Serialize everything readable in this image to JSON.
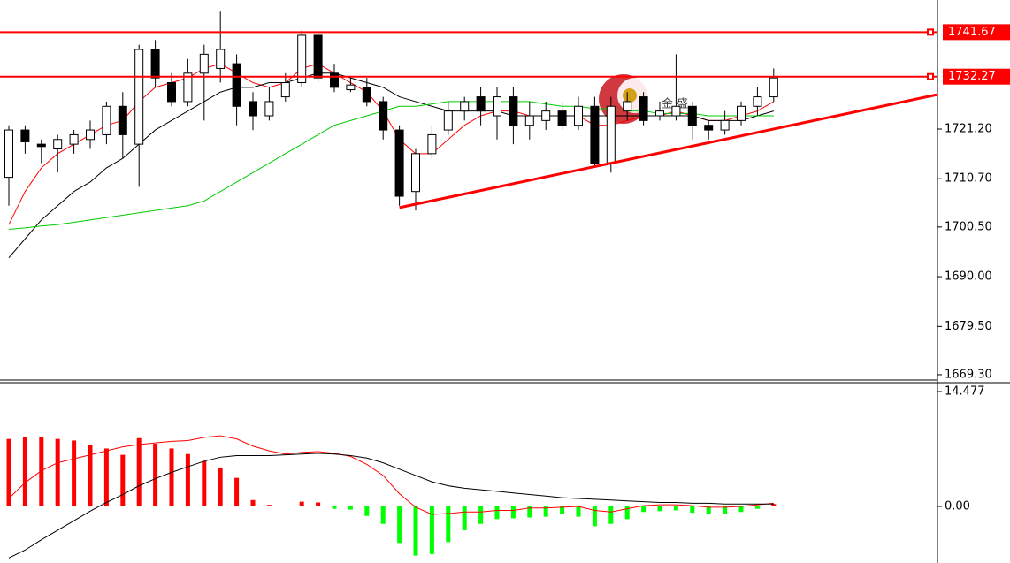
{
  "chart_data": [
    {
      "type": "candlestick",
      "open": [
        1711,
        1721,
        1718,
        1717,
        1718,
        1719,
        1720,
        1726,
        1718,
        1738,
        1731,
        1727,
        1733,
        1734,
        1735,
        1727,
        1724,
        1728,
        1731,
        1741,
        1733,
        1729.5,
        1730,
        1727,
        1721,
        1708,
        1716,
        1721,
        1725,
        1728,
        1724,
        1728,
        1722,
        1723,
        1725,
        1722,
        1726,
        1714,
        1725,
        1728,
        1724,
        1724,
        1726,
        1722,
        1721,
        1723,
        1726,
        1728
      ],
      "high": [
        1722,
        1722,
        1719,
        1720,
        1721,
        1723,
        1727,
        1729,
        1739,
        1740,
        1733,
        1736,
        1739,
        1746,
        1737,
        1729,
        1730,
        1733,
        1742,
        1741.5,
        1735,
        1732,
        1732,
        1728,
        1722,
        1717,
        1722,
        1727,
        1728,
        1730,
        1730,
        1730,
        1727,
        1727,
        1727,
        1728,
        1728,
        1728,
        1729,
        1729,
        1727,
        1737,
        1727,
        1723,
        1725,
        1727,
        1730,
        1734
      ],
      "low": [
        1705,
        1716,
        1714,
        1712,
        1716,
        1717,
        1718,
        1715,
        1709,
        1730,
        1726,
        1726,
        1723,
        1731,
        1722,
        1721,
        1723,
        1727,
        1730,
        1731,
        1729,
        1729,
        1726,
        1719,
        1705,
        1704,
        1715,
        1720,
        1723,
        1722,
        1719,
        1718,
        1719,
        1721,
        1721,
        1721,
        1713,
        1712,
        1723,
        1722,
        1723,
        1723,
        1719,
        1719,
        1720,
        1722,
        1724,
        1727
      ],
      "close": [
        1721,
        1718.5,
        1717.5,
        1719,
        1720,
        1721,
        1726,
        1720,
        1738,
        1732,
        1727,
        1733,
        1737,
        1738,
        1726,
        1724,
        1727,
        1731,
        1741,
        1732,
        1730,
        1730.5,
        1727,
        1721,
        1707,
        1716,
        1720,
        1725,
        1727,
        1725,
        1728,
        1722,
        1724,
        1725,
        1722,
        1726,
        1714,
        1726,
        1727,
        1723,
        1725,
        1726,
        1722,
        1721,
        1723,
        1726,
        1728,
        1732
      ],
      "up_color": "#ffffff",
      "down_color": "#000000",
      "series": [
        {
          "color": "#ff0000",
          "values": [
            1701,
            1708,
            1713,
            1716,
            1718,
            1720,
            1722,
            1723,
            1727,
            1730,
            1731,
            1732,
            1734,
            1735,
            1733,
            1731,
            1730,
            1731,
            1734,
            1735,
            1733,
            1731,
            1729,
            1725,
            1719,
            1716,
            1716,
            1719,
            1722,
            1724,
            1725,
            1725,
            1724,
            1724,
            1724,
            1724,
            1722,
            1722,
            1723,
            1724,
            1724,
            1725,
            1724,
            1723,
            1723,
            1724,
            1725,
            1727
          ]
        },
        {
          "color": "#000000",
          "values": [
            1694,
            1698,
            1702,
            1705,
            1708,
            1710,
            1713,
            1715,
            1718,
            1721,
            1723,
            1725,
            1727,
            1729,
            1730,
            1730,
            1731,
            1731,
            1732,
            1733,
            1733,
            1732,
            1731,
            1730,
            1728,
            1727,
            1726,
            1725,
            1725,
            1725,
            1725,
            1724,
            1724,
            1724,
            1724,
            1724,
            1724,
            1724,
            1724,
            1724,
            1724,
            1724,
            1724,
            1723,
            1723,
            1723,
            1724,
            1725
          ]
        },
        {
          "color": "#00cc00",
          "values": [
            1700,
            1700.3,
            1700.7,
            1701,
            1701.5,
            1702,
            1702.5,
            1703,
            1703.5,
            1704,
            1704.5,
            1705,
            1706,
            1708,
            1710,
            1712,
            1714,
            1716,
            1718,
            1720,
            1722,
            1723,
            1724,
            1725,
            1726,
            1726,
            1726.5,
            1727,
            1727,
            1727,
            1727,
            1727,
            1727,
            1726.5,
            1726,
            1726,
            1725.5,
            1725.5,
            1725,
            1725,
            1724.5,
            1724.5,
            1724.5,
            1724,
            1724,
            1724,
            1724,
            1724
          ]
        }
      ],
      "levels": [
        1741.67,
        1732.27
      ],
      "level_color": "#ff0000",
      "trendline": {
        "x": [
          24,
          57.1
        ],
        "y": [
          1704.6,
          1728.5
        ],
        "color": "#ff0000"
      },
      "watermark": "金 盛",
      "ylim": [
        1668.17,
        1748.46
      ],
      "yticks": [
        {
          "value": 1721.2,
          "label": "1721.20"
        },
        {
          "value": 1710.7,
          "label": "1710.70"
        },
        {
          "value": 1700.5,
          "label": "1700.50"
        },
        {
          "value": 1690,
          "label": "1690.00"
        },
        {
          "value": 1679.5,
          "label": "1679.50"
        },
        {
          "value": 1669.3,
          "label": "1669.30"
        }
      ]
    },
    {
      "type": "macd",
      "values": [
        8.5,
        8.7,
        8.7,
        8.5,
        8.3,
        7.8,
        7.3,
        6.5,
        8.6,
        7.9,
        7.3,
        6.6,
        5.7,
        4.9,
        3.6,
        0.8,
        0.2,
        0.1,
        0.6,
        0.5,
        -0.3,
        -0.4,
        -1.2,
        -2.2,
        -4.6,
        -6.2,
        -6.0,
        -4.5,
        -3.0,
        -2.2,
        -1.6,
        -1.5,
        -1.4,
        -1.3,
        -1.0,
        -1.3,
        -2.5,
        -2.2,
        -1.6,
        -0.7,
        -0.6,
        -0.5,
        -0.8,
        -1.0,
        -1.0,
        -0.7,
        -0.3,
        0.3
      ],
      "up_color": "#ff0000",
      "down_color": "#00ff00",
      "series": [
        {
          "color": "#ff0000",
          "values": [
            1,
            3,
            4.5,
            5.5,
            6,
            6.5,
            7,
            7.5,
            7.8,
            8,
            8.2,
            8.3,
            8.7,
            8.9,
            8.5,
            7.6,
            7.0,
            6.6,
            6.8,
            6.9,
            6.7,
            6.3,
            5.3,
            3.9,
            1.6,
            -0.1,
            -1.0,
            -0.9,
            -0.7,
            -0.7,
            -0.5,
            -0.5,
            -0.2,
            -0.2,
            -0.1,
            0.0,
            -0.5,
            -0.7,
            -0.3,
            0.1,
            0.2,
            0.2,
            0.1,
            -0.1,
            -0.1,
            0.0,
            0.2,
            0.4
          ]
        },
        {
          "color": "#000000",
          "values": [
            -6.5,
            -5.5,
            -4.2,
            -3.0,
            -1.8,
            -0.6,
            0.5,
            1.5,
            2.6,
            3.5,
            4.3,
            5.0,
            5.7,
            6.2,
            6.4,
            6.4,
            6.4,
            6.5,
            6.6,
            6.7,
            6.6,
            6.4,
            6.1,
            5.5,
            4.7,
            3.9,
            3.1,
            2.6,
            2.3,
            2.1,
            1.9,
            1.7,
            1.5,
            1.3,
            1.1,
            1.0,
            0.9,
            0.8,
            0.7,
            0.6,
            0.5,
            0.5,
            0.4,
            0.4,
            0.3,
            0.3,
            0.3,
            0.3
          ]
        }
      ],
      "ylim": [
        -7.13,
        15.59
      ],
      "yticks": [
        14.477,
        {
          "value": 0,
          "label": "0.00"
        }
      ]
    }
  ]
}
